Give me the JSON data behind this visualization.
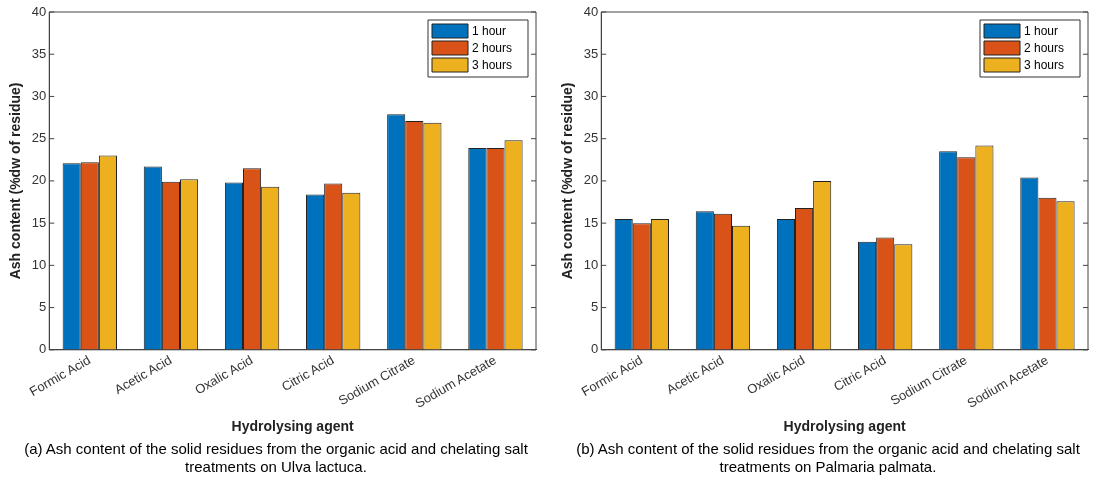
{
  "chart_data": [
    {
      "type": "bar",
      "xlabel": "Hydrolysing agent",
      "ylabel": "Ash content (%dw of residue)",
      "categories": [
        "Formic Acid",
        "Acetic Acid",
        "Oxalic Acid",
        "Citric Acid",
        "Sodium Citrate",
        "Sodium Acetate"
      ],
      "series": [
        {
          "name": "1 hour",
          "color": "#0072bd",
          "values": [
            22.1,
            21.7,
            19.8,
            18.4,
            27.9,
            23.9
          ]
        },
        {
          "name": "2 hours",
          "color": "#d95319",
          "values": [
            22.2,
            19.9,
            21.5,
            19.7,
            27.1,
            23.9
          ]
        },
        {
          "name": "3 hours",
          "color": "#edb120",
          "values": [
            23.0,
            20.2,
            19.3,
            18.6,
            26.9,
            24.8
          ]
        }
      ],
      "ylim": [
        0,
        40
      ],
      "yticks": [
        0,
        5,
        10,
        15,
        20,
        25,
        30,
        35,
        40
      ],
      "grid": false,
      "legend": "top right",
      "annotations": [
        "(a) Ash content of the solid residues from the organic acid and chelating salt treatments on Ulva lactuca."
      ]
    },
    {
      "type": "bar",
      "xlabel": "Hydrolysing agent",
      "ylabel": "Ash content (%dw of residue)",
      "categories": [
        "Formic Acid",
        "Acetic Acid",
        "Oxalic Acid",
        "Citric Acid",
        "Sodium Citrate",
        "Sodium Acetate"
      ],
      "series": [
        {
          "name": "1 hour",
          "color": "#0072bd",
          "values": [
            15.5,
            16.4,
            15.5,
            12.8,
            23.5,
            20.4
          ]
        },
        {
          "name": "2 hours",
          "color": "#d95319",
          "values": [
            15.0,
            16.1,
            16.8,
            13.3,
            22.8,
            18.0
          ]
        },
        {
          "name": "3 hours",
          "color": "#edb120",
          "values": [
            15.5,
            14.7,
            20.0,
            12.5,
            24.2,
            17.6
          ]
        }
      ],
      "ylim": [
        0,
        40
      ],
      "yticks": [
        0,
        5,
        10,
        15,
        20,
        25,
        30,
        35,
        40
      ],
      "grid": false,
      "legend": "top right",
      "annotations": [
        "(b) Ash content of the solid residues from the organic acid and chelating salt treatments on Palmaria palmata."
      ]
    }
  ]
}
